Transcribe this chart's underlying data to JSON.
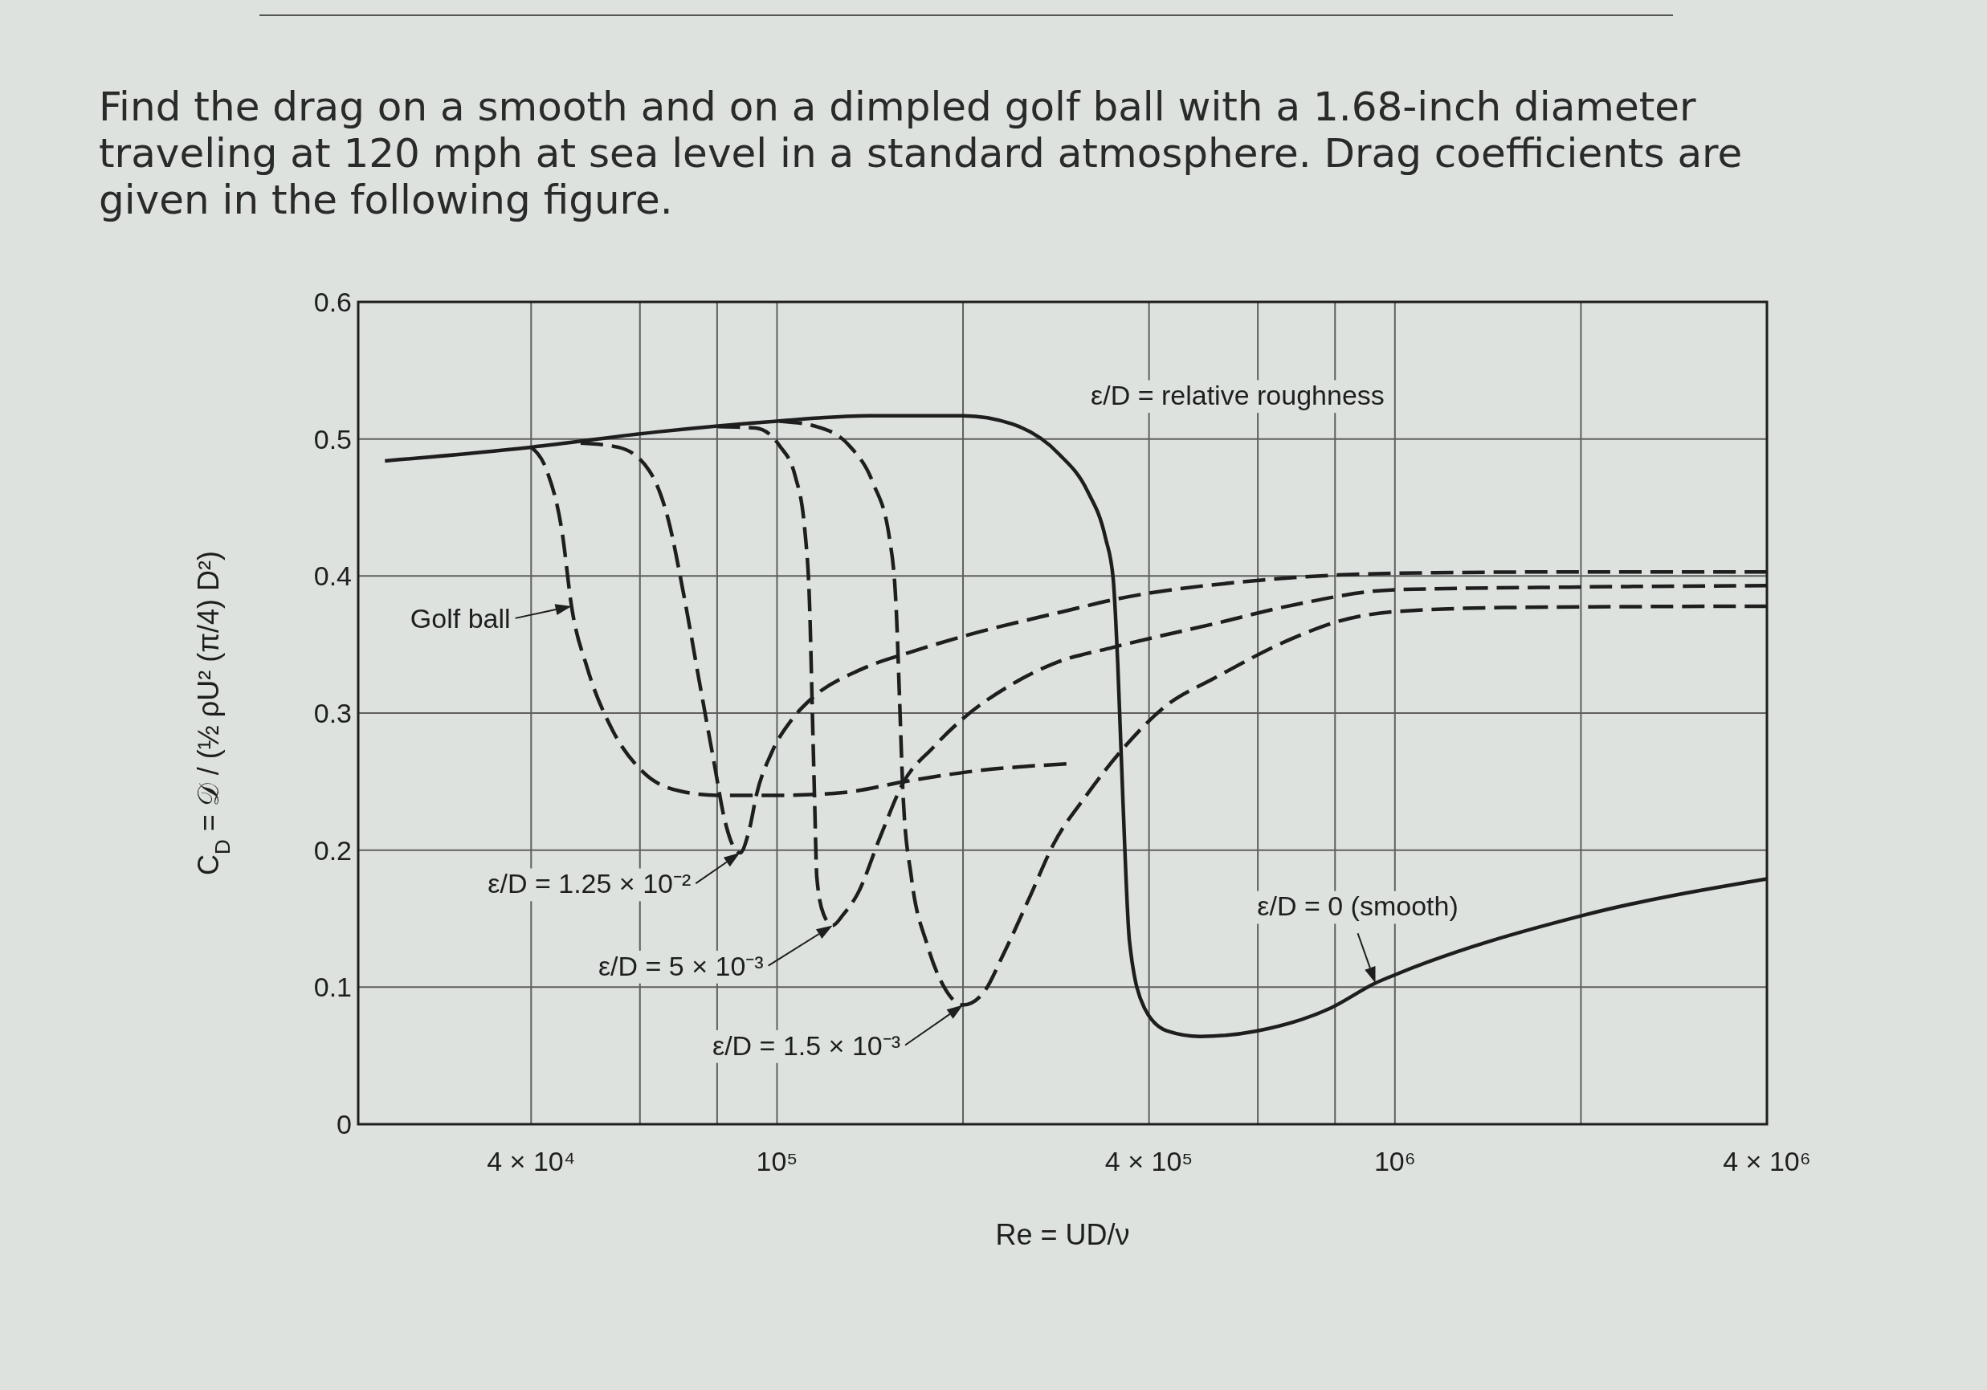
{
  "chart_data": {
    "type": "line",
    "title": "Find the drag on a smooth and on a dimpled golf ball with a 1.68-inch diameter traveling at 120 mph at sea level in a standard atmosphere. Drag coefficients are given in the following figure.",
    "xlabel": "Re = UD/ν",
    "ylabel": "C$_{D}$ = 𝒟 / (½ ρU² (π/4) D²)",
    "log": "x",
    "grid": true,
    "xlim": [
      21000,
      4000000
    ],
    "xticks": [
      {
        "value": 40000,
        "label": "4 × 10⁴"
      },
      {
        "value": 60000,
        "label": null
      },
      {
        "value": 80000,
        "label": null
      },
      {
        "value": 100000,
        "label": "10⁵"
      },
      {
        "value": 200000,
        "label": null
      },
      {
        "value": 400000,
        "label": "4 × 10⁵"
      },
      {
        "value": 600000,
        "label": null
      },
      {
        "value": 800000,
        "label": null
      },
      {
        "value": 1000000,
        "label": "10⁶"
      },
      {
        "value": 2000000,
        "label": null
      },
      {
        "value": 4000000,
        "label": "4 × 10⁶"
      }
    ],
    "ylim": [
      0,
      0.6
    ],
    "yticks": [
      0,
      0.1,
      0.2,
      0.3,
      0.4,
      0.5,
      0.6
    ],
    "series": [
      {
        "color": "#1e1e1e",
        "line_style": "solid",
        "x": [
          23200,
          40000,
          63500,
          100000,
          141000,
          200000,
          240000,
          286000,
          318000,
          340000,
          350000,
          356000,
          363000,
          372000,
          393000,
          428000,
          484000,
          597000,
          789000,
          930000,
          1000000,
          2000000,
          4000000
        ],
        "values": [
          0.484,
          0.494,
          0.505,
          0.513,
          0.517,
          0.517,
          0.511,
          0.489,
          0.462,
          0.428,
          0.398,
          0.336,
          0.235,
          0.133,
          0.085,
          0.068,
          0.064,
          0.068,
          0.085,
          0.103,
          0.109,
          0.152,
          0.179
        ]
      },
      {
        "color": "#1e1e1e",
        "line_style": "dashed",
        "x": [
          40000,
          42400,
          44900,
          46500,
          49300,
          54100,
          60700,
          69800,
          80200,
          101000,
          128000,
          161000,
          203000,
          294000
        ],
        "values": [
          0.494,
          0.477,
          0.432,
          0.378,
          0.333,
          0.288,
          0.257,
          0.243,
          0.24,
          0.24,
          0.242,
          0.25,
          0.257,
          0.263
        ]
      },
      {
        "color": "#1e1e1e",
        "line_style": "dashed",
        "x": [
          48100,
          55300,
          62100,
          66700,
          70600,
          74800,
          79300,
          82000,
          84900,
          87100,
          90200,
          92700,
          98000,
          106000,
          114000,
          137000,
          166000,
          200000,
          290000,
          353000,
          608000,
          1000000,
          2000000,
          4000000
        ],
        "values": [
          0.497,
          0.494,
          0.477,
          0.441,
          0.387,
          0.324,
          0.261,
          0.225,
          0.203,
          0.198,
          0.215,
          0.241,
          0.271,
          0.296,
          0.311,
          0.332,
          0.345,
          0.356,
          0.374,
          0.383,
          0.397,
          0.402,
          0.403,
          0.403
        ]
      },
      {
        "color": "#1e1e1e",
        "line_style": "dashed",
        "x": [
          80200,
          92300,
          101000,
          107000,
          111000,
          113000,
          114000,
          115000,
          116000,
          119000,
          123000,
          128000,
          135000,
          147000,
          160000,
          179000,
          200000,
          240000,
          280000,
          350000,
          508000,
          687000,
          1000000,
          2000000,
          4000000
        ],
        "values": [
          0.509,
          0.508,
          0.495,
          0.473,
          0.432,
          0.374,
          0.306,
          0.239,
          0.18,
          0.153,
          0.145,
          0.153,
          0.168,
          0.21,
          0.249,
          0.275,
          0.296,
          0.321,
          0.336,
          0.348,
          0.365,
          0.379,
          0.39,
          0.392,
          0.393
        ]
      },
      {
        "color": "#1e1e1e",
        "line_style": "dashed",
        "x": [
          101000,
          116000,
          131000,
          143000,
          152000,
          156000,
          158000,
          160000,
          165000,
          175000,
          187000,
          200000,
          215000,
          233000,
          256000,
          280000,
          318000,
          363000,
          428000,
          508000,
          687000,
          811000,
          1000000,
          1510000,
          4000000
        ],
        "values": [
          0.513,
          0.509,
          0.495,
          0.468,
          0.428,
          0.374,
          0.306,
          0.239,
          0.18,
          0.131,
          0.099,
          0.087,
          0.095,
          0.125,
          0.165,
          0.204,
          0.241,
          0.274,
          0.306,
          0.325,
          0.355,
          0.367,
          0.374,
          0.377,
          0.378
        ]
      }
    ],
    "annotations": [
      {
        "text": "Golf ball",
        "x": 46500,
        "y": 0.378
      },
      {
        "text": "ε/D = 1.25 × 10⁻²",
        "x": 87100,
        "y": 0.198
      },
      {
        "text": "ε/D = 5 × 10⁻³",
        "x": 123000,
        "y": 0.145
      },
      {
        "text": "ε/D = 1.5 × 10⁻³",
        "x": 200000,
        "y": 0.087
      },
      {
        "text": "ε/D = 0 (smooth)",
        "x": 930000,
        "y": 0.103
      },
      "ε/D = relative roughness"
    ]
  }
}
